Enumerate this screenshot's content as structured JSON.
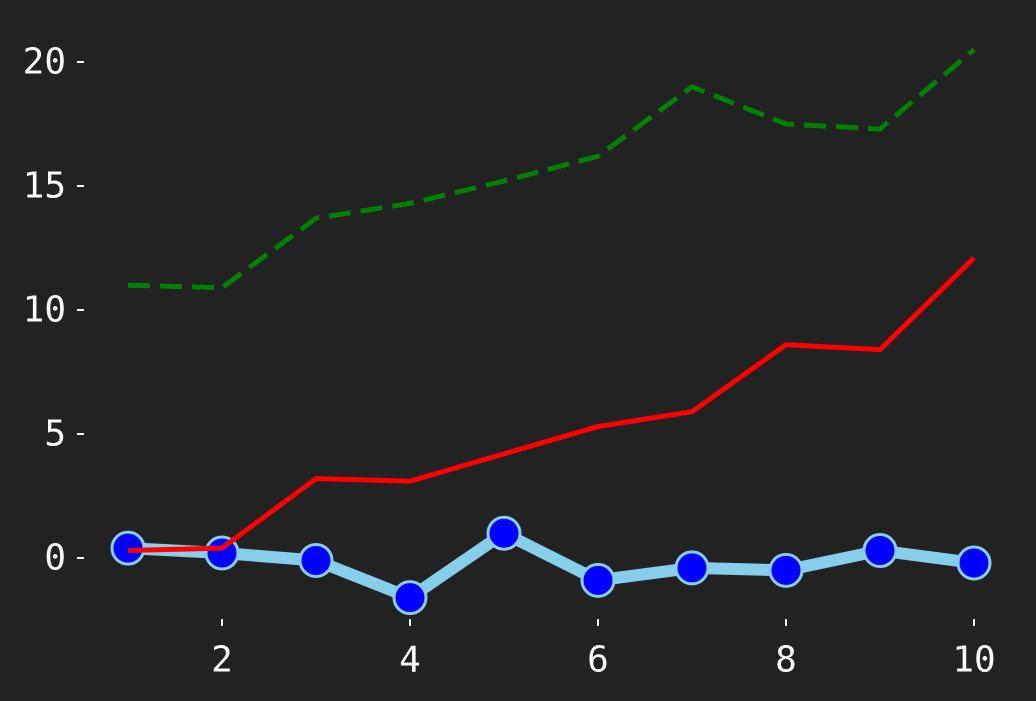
{
  "chart_data": {
    "type": "line",
    "x": [
      1,
      2,
      3,
      4,
      5,
      6,
      7,
      8,
      9,
      10
    ],
    "series": [
      {
        "values": [
          11.0,
          10.9,
          13.7,
          14.3,
          15.2,
          16.2,
          19.0,
          17.5,
          17.3,
          20.5
        ],
        "color": "#008000",
        "style": "dashed"
      },
      {
        "values": [
          0.3,
          0.4,
          3.2,
          3.1,
          4.2,
          5.3,
          5.9,
          8.6,
          8.4,
          12.1
        ],
        "color": "#ff0000",
        "style": "solid"
      },
      {
        "values": [
          0.4,
          0.2,
          -0.1,
          -1.6,
          1.0,
          -0.9,
          -0.4,
          -0.5,
          0.3,
          -0.2
        ],
        "color": "#87ceeb",
        "marker_color": "#0000ff",
        "style": "solid-with-markers"
      }
    ],
    "x_ticks": [
      "2",
      "4",
      "6",
      "8",
      "10"
    ],
    "y_ticks": [
      "0",
      "5",
      "10",
      "15",
      "20"
    ],
    "xlim": [
      0.5,
      10.5
    ],
    "ylim": [
      -2.5,
      22.5
    ],
    "grid": false,
    "background": "#222222",
    "title": "",
    "xlabel": "",
    "ylabel": ""
  }
}
